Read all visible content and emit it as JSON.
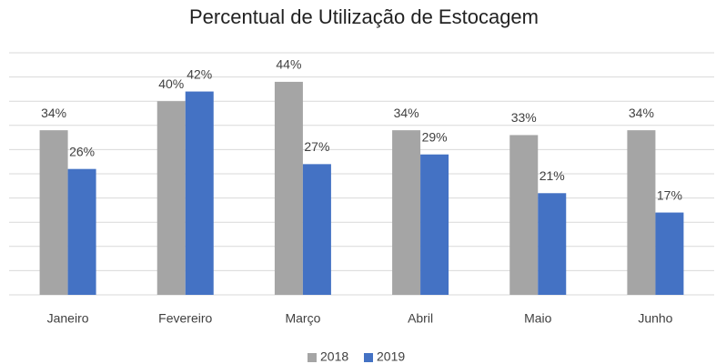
{
  "chart_data": {
    "type": "bar",
    "title": "Percentual de Utilização de Estocagem",
    "categories": [
      "Janeiro",
      "Fevereiro",
      "Março",
      "Abril",
      "Maio",
      "Junho"
    ],
    "series": [
      {
        "name": "2018",
        "color": "#a5a5a5",
        "values": [
          34,
          40,
          44,
          34,
          33,
          34
        ],
        "value_labels": [
          "34%",
          "40%",
          "44%",
          "34%",
          "33%",
          "34%"
        ]
      },
      {
        "name": "2019",
        "color": "#4472c4",
        "values": [
          26,
          42,
          27,
          29,
          21,
          17
        ],
        "value_labels": [
          "26%",
          "42%",
          "27%",
          "29%",
          "21%",
          "17%"
        ]
      }
    ],
    "ylim": [
      0,
      50
    ],
    "yticks": [
      0,
      5,
      10,
      15,
      20,
      25,
      30,
      35,
      40,
      45,
      50
    ],
    "grid": true,
    "legend": "bottom"
  }
}
